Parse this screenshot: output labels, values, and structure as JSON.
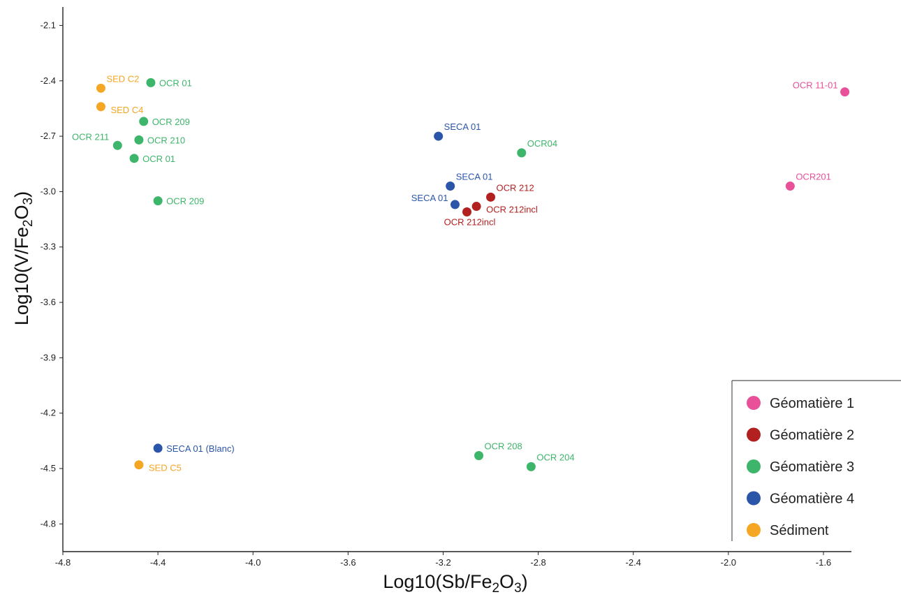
{
  "chart_data": {
    "type": "scatter",
    "xlabel": {
      "prefix": "Log10(Sb/Fe",
      "sub1": "2",
      "mid": "O",
      "sub2": "3",
      "suffix": ")"
    },
    "ylabel": {
      "prefix": "Log10(V/Fe",
      "sub1": "2",
      "mid": "O",
      "sub2": "3",
      "suffix": ")"
    },
    "xlim": [
      -4.8,
      -1.5
    ],
    "ylim": [
      -4.95,
      -2.0
    ],
    "xticks": [
      -4.8,
      -4.4,
      -4.0,
      -3.6,
      -3.2,
      -2.8,
      -2.4,
      -2.0,
      -1.6
    ],
    "yticks": [
      -2.1,
      -2.4,
      -2.7,
      -3.0,
      -3.3,
      -3.6,
      -3.9,
      -4.2,
      -4.5,
      -4.8
    ],
    "xtick_labels": [
      "-4.8",
      "-4.4",
      "-4.0",
      "-3.6",
      "-3.2",
      "-2.8",
      "-2.4",
      "-2.0",
      "-1.6"
    ],
    "ytick_labels": [
      "-2.1",
      "-2.4",
      "-2.7",
      "-3.0",
      "-3.3",
      "-3.6",
      "-3.9",
      "-4.2",
      "-4.5",
      "-4.8"
    ],
    "grid": false,
    "legend_position": "bottom-right",
    "series": [
      {
        "name": "Géomatière 1",
        "color": "#e8519a",
        "points": [
          {
            "x": -1.51,
            "y": -2.46,
            "label": "OCR 11-01",
            "label_side": "left"
          },
          {
            "x": -1.74,
            "y": -2.97,
            "label": "OCR201",
            "label_side": "right-up"
          }
        ]
      },
      {
        "name": "Géomatière 2",
        "color": "#b22020",
        "points": [
          {
            "x": -3.0,
            "y": -3.03,
            "label": "OCR 212",
            "label_side": "right-up"
          },
          {
            "x": -3.06,
            "y": -3.08,
            "label": "OCR 212incl",
            "label_side": "right-down"
          },
          {
            "x": -3.1,
            "y": -3.11,
            "label": "OCR 212incl",
            "label_side": "below"
          }
        ]
      },
      {
        "name": "Géomatière 3",
        "color": "#3db56a",
        "points": [
          {
            "x": -4.43,
            "y": -2.41,
            "label": "OCR 01",
            "label_side": "right"
          },
          {
            "x": -4.46,
            "y": -2.62,
            "label": "OCR 209",
            "label_side": "right"
          },
          {
            "x": -4.48,
            "y": -2.72,
            "label": "OCR 210",
            "label_side": "right"
          },
          {
            "x": -4.57,
            "y": -2.75,
            "label": "OCR 211",
            "label_side": "left-up"
          },
          {
            "x": -4.5,
            "y": -2.82,
            "label": "OCR 01",
            "label_side": "right"
          },
          {
            "x": -4.4,
            "y": -3.05,
            "label": "OCR 209",
            "label_side": "right"
          },
          {
            "x": -2.87,
            "y": -2.79,
            "label": "OCR04",
            "label_side": "right-up"
          },
          {
            "x": -3.05,
            "y": -4.43,
            "label": "OCR 208",
            "label_side": "right-up"
          },
          {
            "x": -2.83,
            "y": -4.49,
            "label": "OCR 204",
            "label_side": "right-up"
          }
        ]
      },
      {
        "name": "Géomatière 4",
        "color": "#2b55a8",
        "points": [
          {
            "x": -3.22,
            "y": -2.7,
            "label": "SECA 01",
            "label_side": "right-up"
          },
          {
            "x": -3.17,
            "y": -2.97,
            "label": "SECA 01",
            "label_side": "right-up"
          },
          {
            "x": -3.15,
            "y": -3.07,
            "label": "SECA 01",
            "label_side": "left"
          },
          {
            "x": -4.4,
            "y": -4.39,
            "label": "SECA 01 (Blanc)",
            "label_side": "right"
          }
        ]
      },
      {
        "name": "Sédiment",
        "color": "#f5a623",
        "points": [
          {
            "x": -4.64,
            "y": -2.44,
            "label": "SED C2",
            "label_side": "right-up"
          },
          {
            "x": -4.64,
            "y": -2.54,
            "label": "SED C4",
            "label_side": "right-down"
          },
          {
            "x": -4.48,
            "y": -4.48,
            "label": "SED C5",
            "label_side": "right-down"
          }
        ]
      }
    ]
  }
}
